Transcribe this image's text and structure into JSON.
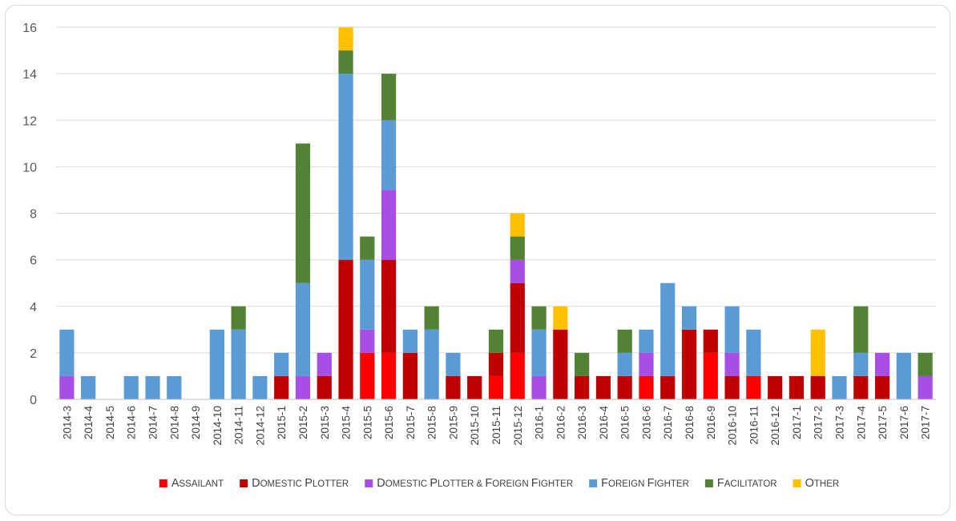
{
  "chart_data": {
    "type": "bar",
    "stacked": true,
    "title": "",
    "xlabel": "",
    "ylabel": "",
    "ylim": [
      0,
      16
    ],
    "yticks": [
      0,
      2,
      4,
      6,
      8,
      10,
      12,
      14,
      16
    ],
    "grid": true,
    "legend_position": "bottom",
    "categories": [
      "2014-3",
      "2014-4",
      "2014-5",
      "2014-6",
      "2014-7",
      "2014-8",
      "2014-9",
      "2014-10",
      "2014-11",
      "2014-12",
      "2015-1",
      "2015-2",
      "2015-3",
      "2015-4",
      "2015-5",
      "2015-6",
      "2015-7",
      "2015-8",
      "2015-9",
      "2015-10",
      "2015-11",
      "2015-12",
      "2016-1",
      "2016-2",
      "2016-3",
      "2016-4",
      "2016-5",
      "2016-6",
      "2016-7",
      "2016-8",
      "2016-9",
      "2016-10",
      "2016-11",
      "2016-12",
      "2017-1",
      "2017-2",
      "2017-3",
      "2017-4",
      "2017-5",
      "2017-6",
      "2017-7"
    ],
    "series": [
      {
        "name": "Assailant",
        "color": "#ff0000",
        "values": [
          0,
          0,
          0,
          0,
          0,
          0,
          0,
          0,
          0,
          0,
          0,
          0,
          0,
          0,
          2,
          2,
          0,
          0,
          0,
          0,
          1,
          2,
          0,
          0,
          0,
          0,
          0,
          1,
          0,
          0,
          2,
          0,
          1,
          0,
          0,
          0,
          0,
          0,
          0,
          0,
          0
        ]
      },
      {
        "name": "Domestic Plotter",
        "color": "#c00000",
        "values": [
          0,
          0,
          0,
          0,
          0,
          0,
          0,
          0,
          0,
          0,
          1,
          0,
          1,
          6,
          0,
          4,
          2,
          0,
          1,
          1,
          1,
          3,
          0,
          3,
          1,
          1,
          1,
          0,
          1,
          3,
          1,
          1,
          0,
          1,
          1,
          1,
          0,
          1,
          1,
          0,
          0
        ]
      },
      {
        "name": "Domestic Plotter & Foreign Fighter",
        "color": "#a64ee6",
        "values": [
          1,
          0,
          0,
          0,
          0,
          0,
          0,
          0,
          0,
          0,
          0,
          1,
          1,
          0,
          1,
          3,
          0,
          0,
          0,
          0,
          0,
          1,
          1,
          0,
          0,
          0,
          0,
          1,
          0,
          0,
          0,
          1,
          0,
          0,
          0,
          0,
          0,
          0,
          1,
          0,
          1
        ]
      },
      {
        "name": "Foreign Fighter",
        "color": "#5b9bd5",
        "values": [
          2,
          1,
          0,
          1,
          1,
          1,
          0,
          3,
          3,
          1,
          1,
          4,
          0,
          8,
          3,
          3,
          1,
          3,
          1,
          0,
          0,
          0,
          2,
          0,
          0,
          0,
          1,
          1,
          4,
          1,
          0,
          2,
          2,
          0,
          0,
          0,
          1,
          1,
          0,
          2,
          0
        ]
      },
      {
        "name": "Facilitator",
        "color": "#548235",
        "values": [
          0,
          0,
          0,
          0,
          0,
          0,
          0,
          0,
          1,
          0,
          0,
          6,
          0,
          1,
          1,
          2,
          0,
          1,
          0,
          0,
          1,
          1,
          1,
          0,
          1,
          0,
          1,
          0,
          0,
          0,
          0,
          0,
          0,
          0,
          0,
          0,
          0,
          2,
          0,
          0,
          1
        ]
      },
      {
        "name": "Other",
        "color": "#ffc000",
        "values": [
          0,
          0,
          0,
          0,
          0,
          0,
          0,
          0,
          0,
          0,
          0,
          0,
          0,
          1,
          0,
          0,
          0,
          0,
          0,
          0,
          0,
          1,
          0,
          1,
          0,
          0,
          0,
          0,
          0,
          0,
          0,
          0,
          0,
          0,
          0,
          2,
          0,
          0,
          0,
          0,
          0
        ]
      }
    ]
  }
}
